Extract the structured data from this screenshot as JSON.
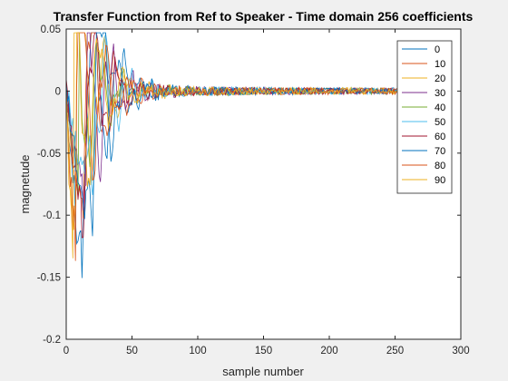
{
  "chart_data": {
    "type": "line",
    "title": "Transfer Function from Ref to Speaker - Time domain 256 coefficients",
    "xlabel": "sample number",
    "ylabel": "magnetude",
    "xlim": [
      0,
      300
    ],
    "ylim": [
      -0.2,
      0.05
    ],
    "xticks": [
      0,
      50,
      100,
      150,
      200,
      250,
      300
    ],
    "yticks": [
      -0.2,
      -0.15,
      -0.1,
      -0.05,
      0,
      0.05
    ],
    "xtick_labels": [
      "0",
      "50",
      "100",
      "150",
      "200",
      "250",
      "300"
    ],
    "ytick_labels": [
      "-0.2",
      "-0.15",
      "-0.1",
      "-0.05",
      "0",
      "0.05"
    ],
    "grid": false,
    "legend_position": "top-right",
    "n_samples": 256,
    "series": [
      {
        "name": "0",
        "color": "#0072BD",
        "peak": [
          12,
          -0.15
        ]
      },
      {
        "name": "10",
        "color": "#D95319",
        "peak": [
          14,
          -0.12
        ]
      },
      {
        "name": "20",
        "color": "#EDB120",
        "peak": [
          8,
          -0.135
        ]
      },
      {
        "name": "30",
        "color": "#7E2F8E",
        "peak": [
          16,
          -0.1
        ]
      },
      {
        "name": "40",
        "color": "#77AC30",
        "peak": [
          10,
          -0.09
        ]
      },
      {
        "name": "50",
        "color": "#4DBEEE",
        "peak": [
          18,
          -0.08
        ]
      },
      {
        "name": "60",
        "color": "#A2142F",
        "peak": [
          12,
          -0.1
        ]
      },
      {
        "name": "70",
        "color": "#0072BD",
        "peak": [
          20,
          -0.12
        ]
      },
      {
        "name": "80",
        "color": "#D95319",
        "peak": [
          8,
          -0.14
        ]
      },
      {
        "name": "90",
        "color": "#EDB120",
        "peak": [
          6,
          -0.155
        ]
      }
    ]
  }
}
